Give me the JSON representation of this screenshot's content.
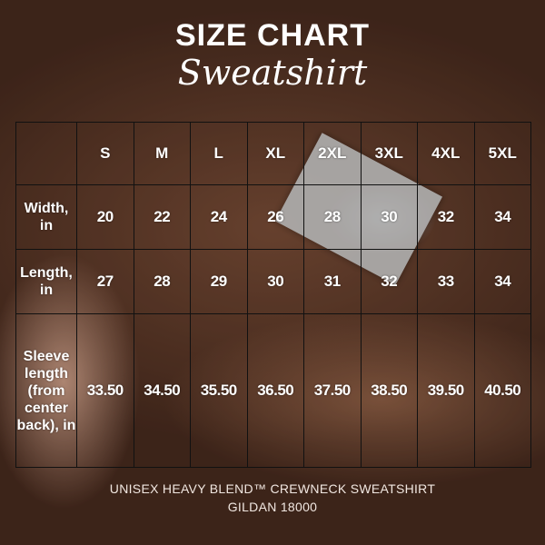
{
  "title": "SIZE CHART",
  "subtitle": "Sweatshirt",
  "sizes": [
    "S",
    "M",
    "L",
    "XL",
    "2XL",
    "3XL",
    "4XL",
    "5XL"
  ],
  "rows": [
    {
      "label": "Width, in",
      "values": [
        "20",
        "22",
        "24",
        "26",
        "28",
        "30",
        "32",
        "34"
      ]
    },
    {
      "label": "Length, in",
      "values": [
        "27",
        "28",
        "29",
        "30",
        "31",
        "32",
        "33",
        "34"
      ]
    },
    {
      "label": "Sleeve length (from center back), in",
      "values": [
        "33.50",
        "34.50",
        "35.50",
        "36.50",
        "37.50",
        "38.50",
        "39.50",
        "40.50"
      ]
    }
  ],
  "footer": {
    "line1": "UNISEX HEAVY BLEND™ CREWNECK SWEATSHIRT",
    "line2": "GILDAN 18000"
  },
  "colors": {
    "text": "#ffffff",
    "grid": "#111111",
    "background": "#7d4f38"
  }
}
